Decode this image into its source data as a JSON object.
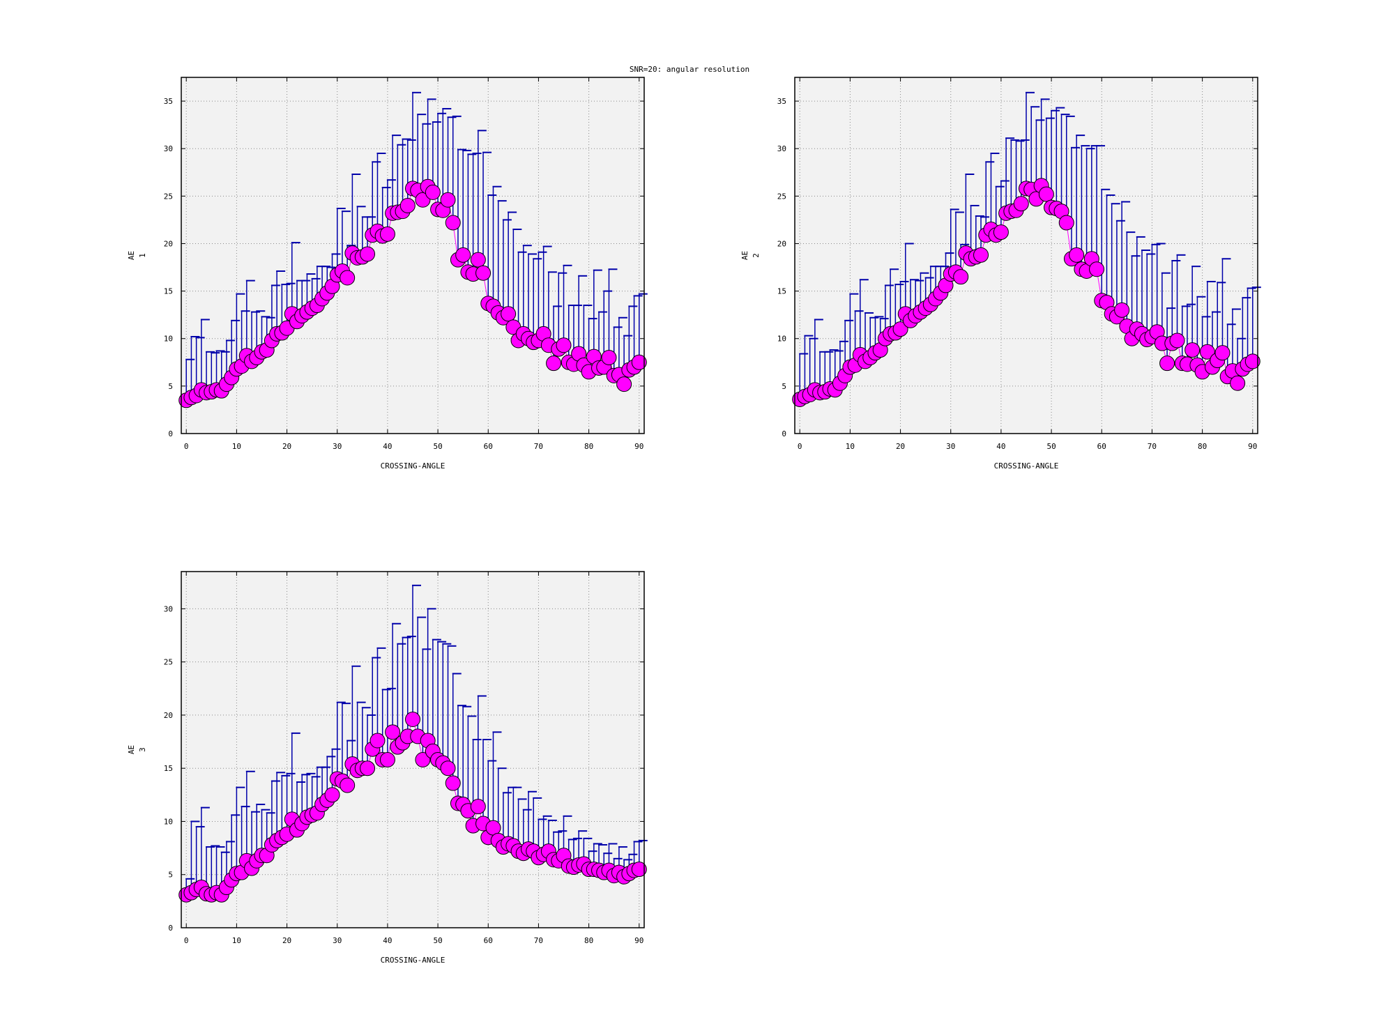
{
  "figure": {
    "title": "SNR=20: angular resolution"
  },
  "colors": {
    "plot_bg": "#f2f2f2",
    "marker": "#ff00ff",
    "marker_edge": "#000000",
    "error_bar": "#0000aa",
    "line": "#ff00ff",
    "grid": "#888888"
  },
  "chart_data": [
    {
      "type": "scatter",
      "title": "",
      "xlabel": "CROSSING-ANGLE",
      "ylabel": [
        "AE",
        "1"
      ],
      "xlim": [
        -1,
        91
      ],
      "ylim": [
        0,
        37.5
      ],
      "xticks": [
        0,
        10,
        20,
        30,
        40,
        50,
        60,
        70,
        80,
        90
      ],
      "yticks": [
        0,
        5,
        10,
        15,
        20,
        25,
        30,
        35
      ],
      "grid": true,
      "errorbars": "upper",
      "x": [
        0,
        1,
        2,
        3,
        4,
        5,
        6,
        7,
        8,
        9,
        10,
        11,
        12,
        13,
        14,
        15,
        16,
        17,
        18,
        19,
        20,
        21,
        22,
        23,
        24,
        25,
        26,
        27,
        28,
        29,
        30,
        31,
        32,
        33,
        34,
        35,
        36,
        37,
        38,
        39,
        40,
        41,
        42,
        43,
        44,
        45,
        46,
        47,
        48,
        49,
        50,
        51,
        52,
        53,
        54,
        55,
        56,
        57,
        58,
        59,
        60,
        61,
        62,
        63,
        64,
        65,
        66,
        67,
        68,
        69,
        70,
        71,
        72,
        73,
        74,
        75,
        76,
        77,
        78,
        79,
        80,
        81,
        82,
        83,
        84,
        85,
        86,
        87,
        88,
        89,
        90
      ],
      "y": [
        3.5,
        3.8,
        4.0,
        4.6,
        4.3,
        4.4,
        4.6,
        4.5,
        5.2,
        5.9,
        6.8,
        7.1,
        8.2,
        7.6,
        8.0,
        8.6,
        8.8,
        9.8,
        10.5,
        10.6,
        11.1,
        12.6,
        11.8,
        12.4,
        12.8,
        13.2,
        13.5,
        14.2,
        14.8,
        15.5,
        16.7,
        17.1,
        16.4,
        19.0,
        18.5,
        18.6,
        18.9,
        20.9,
        21.3,
        20.8,
        21.0,
        23.2,
        23.3,
        23.4,
        24.0,
        25.8,
        25.6,
        24.6,
        26.0,
        25.4,
        23.6,
        23.5,
        24.6,
        22.2,
        18.3,
        18.8,
        17.0,
        16.8,
        18.3,
        16.9,
        13.7,
        13.4,
        12.7,
        12.2,
        12.6,
        11.2,
        9.8,
        10.5,
        10.0,
        9.6,
        9.8,
        10.5,
        9.3,
        7.4,
        8.9,
        9.3,
        7.5,
        7.3,
        8.4,
        7.2,
        6.5,
        8.1,
        6.9,
        7.0,
        8.0,
        6.1,
        6.2,
        5.2,
        6.7,
        7.0,
        7.5
      ],
      "yerr_top": [
        7.8,
        10.2,
        10.1,
        12.0,
        8.6,
        8.5,
        8.7,
        8.6,
        9.8,
        11.9,
        14.7,
        12.9,
        16.1,
        12.8,
        12.9,
        12.3,
        12.2,
        15.6,
        17.1,
        15.7,
        15.8,
        20.1,
        16.1,
        16.1,
        16.8,
        16.3,
        17.6,
        17.6,
        17.5,
        18.9,
        23.7,
        23.4,
        19.8,
        27.3,
        23.9,
        22.8,
        22.8,
        28.6,
        29.5,
        25.9,
        26.7,
        31.4,
        30.4,
        31.0,
        30.9,
        35.9,
        33.6,
        32.6,
        35.2,
        32.8,
        33.7,
        34.2,
        33.3,
        33.4,
        29.9,
        29.8,
        29.4,
        29.5,
        31.9,
        29.6,
        25.1,
        26.0,
        24.5,
        22.5,
        23.3,
        21.5,
        19.1,
        19.8,
        18.9,
        18.4,
        19.1,
        19.7,
        17.0,
        13.4,
        16.9,
        17.7,
        13.5,
        13.5,
        16.6,
        13.5,
        12.1,
        17.2,
        12.8,
        15.0,
        17.3,
        11.2,
        12.2,
        10.3,
        13.4,
        14.5,
        14.7
      ]
    },
    {
      "type": "scatter",
      "title": "",
      "xlabel": "CROSSING-ANGLE",
      "ylabel": [
        "AE",
        "2"
      ],
      "xlim": [
        -1,
        91
      ],
      "ylim": [
        0,
        37.5
      ],
      "xticks": [
        0,
        10,
        20,
        30,
        40,
        50,
        60,
        70,
        80,
        90
      ],
      "yticks": [
        0,
        5,
        10,
        15,
        20,
        25,
        30,
        35
      ],
      "grid": true,
      "errorbars": "upper",
      "x": [
        0,
        1,
        2,
        3,
        4,
        5,
        6,
        7,
        8,
        9,
        10,
        11,
        12,
        13,
        14,
        15,
        16,
        17,
        18,
        19,
        20,
        21,
        22,
        23,
        24,
        25,
        26,
        27,
        28,
        29,
        30,
        31,
        32,
        33,
        34,
        35,
        36,
        37,
        38,
        39,
        40,
        41,
        42,
        43,
        44,
        45,
        46,
        47,
        48,
        49,
        50,
        51,
        52,
        53,
        54,
        55,
        56,
        57,
        58,
        59,
        60,
        61,
        62,
        63,
        64,
        65,
        66,
        67,
        68,
        69,
        70,
        71,
        72,
        73,
        74,
        75,
        76,
        77,
        78,
        79,
        80,
        81,
        82,
        83,
        84,
        85,
        86,
        87,
        88,
        89,
        90
      ],
      "y": [
        3.6,
        3.9,
        4.1,
        4.6,
        4.3,
        4.4,
        4.7,
        4.6,
        5.3,
        6.1,
        7.0,
        7.2,
        8.3,
        7.6,
        8.0,
        8.5,
        8.8,
        10.0,
        10.5,
        10.6,
        11.0,
        12.6,
        11.9,
        12.4,
        12.8,
        13.2,
        13.6,
        14.2,
        14.8,
        15.6,
        16.8,
        17.0,
        16.5,
        19.0,
        18.4,
        18.6,
        18.8,
        20.9,
        21.5,
        20.9,
        21.2,
        23.2,
        23.4,
        23.5,
        24.2,
        25.8,
        25.7,
        24.7,
        26.1,
        25.2,
        23.8,
        23.7,
        23.4,
        22.2,
        18.4,
        18.8,
        17.3,
        17.1,
        18.4,
        17.3,
        14.0,
        13.8,
        12.6,
        12.3,
        13.0,
        11.3,
        10.0,
        11.0,
        10.5,
        9.9,
        10.2,
        10.7,
        9.5,
        7.4,
        9.5,
        9.8,
        7.4,
        7.3,
        8.8,
        7.2,
        6.5,
        8.6,
        7.0,
        7.7,
        8.5,
        6.0,
        6.6,
        5.3,
        6.8,
        7.3,
        7.6
      ],
      "yerr_top": [
        8.4,
        10.3,
        10.0,
        12.0,
        8.6,
        8.6,
        8.8,
        8.7,
        9.7,
        11.9,
        14.7,
        12.9,
        16.2,
        12.7,
        12.2,
        12.3,
        12.1,
        15.6,
        17.3,
        15.7,
        16.0,
        20.0,
        16.2,
        16.1,
        16.9,
        16.4,
        17.6,
        17.6,
        17.6,
        19.0,
        23.6,
        23.3,
        19.9,
        27.3,
        24.0,
        22.9,
        22.8,
        28.6,
        29.5,
        26.0,
        26.6,
        31.1,
        30.9,
        30.8,
        30.9,
        35.9,
        34.4,
        33.0,
        35.2,
        33.2,
        34.0,
        34.3,
        33.6,
        33.4,
        30.1,
        31.4,
        30.3,
        30.0,
        30.3,
        30.3,
        25.7,
        25.1,
        24.2,
        22.4,
        24.4,
        21.2,
        18.7,
        20.7,
        19.3,
        18.9,
        19.9,
        20.0,
        16.9,
        13.2,
        18.2,
        18.8,
        13.4,
        13.6,
        17.6,
        14.4,
        12.3,
        16.0,
        12.8,
        15.9,
        18.4,
        11.5,
        13.1,
        10.0,
        14.3,
        15.3,
        15.4
      ]
    },
    {
      "type": "scatter",
      "title": "",
      "xlabel": "CROSSING-ANGLE",
      "ylabel": [
        "AE",
        "3"
      ],
      "xlim": [
        -1,
        91
      ],
      "ylim": [
        0,
        33.5
      ],
      "xticks": [
        0,
        10,
        20,
        30,
        40,
        50,
        60,
        70,
        80,
        90
      ],
      "yticks": [
        0,
        5,
        10,
        15,
        20,
        25,
        30
      ],
      "grid": true,
      "errorbars": "upper",
      "x": [
        0,
        1,
        2,
        3,
        4,
        5,
        6,
        7,
        8,
        9,
        10,
        11,
        12,
        13,
        14,
        15,
        16,
        17,
        18,
        19,
        20,
        21,
        22,
        23,
        24,
        25,
        26,
        27,
        28,
        29,
        30,
        31,
        32,
        33,
        34,
        35,
        36,
        37,
        38,
        39,
        40,
        41,
        42,
        43,
        44,
        45,
        46,
        47,
        48,
        49,
        50,
        51,
        52,
        53,
        54,
        55,
        56,
        57,
        58,
        59,
        60,
        61,
        62,
        63,
        64,
        65,
        66,
        67,
        68,
        69,
        70,
        71,
        72,
        73,
        74,
        75,
        76,
        77,
        78,
        79,
        80,
        81,
        82,
        83,
        84,
        85,
        86,
        87,
        88,
        89,
        90
      ],
      "y": [
        3.1,
        3.3,
        3.6,
        3.8,
        3.2,
        3.1,
        3.3,
        3.1,
        3.8,
        4.5,
        5.1,
        5.2,
        6.3,
        5.6,
        6.3,
        6.8,
        6.8,
        7.8,
        8.2,
        8.5,
        8.8,
        10.2,
        9.2,
        9.8,
        10.4,
        10.6,
        10.8,
        11.6,
        12.0,
        12.5,
        14.0,
        13.8,
        13.4,
        15.4,
        14.8,
        15.0,
        15.0,
        16.8,
        17.6,
        15.8,
        15.8,
        18.4,
        17.0,
        17.4,
        18.0,
        19.6,
        18.0,
        15.8,
        17.6,
        16.6,
        15.8,
        15.5,
        15.0,
        13.6,
        11.7,
        11.6,
        11.0,
        9.6,
        11.4,
        9.8,
        8.5,
        9.4,
        8.2,
        7.6,
        7.9,
        7.7,
        7.2,
        7.0,
        7.4,
        7.2,
        6.6,
        6.9,
        7.2,
        6.4,
        6.3,
        6.8,
        5.8,
        5.7,
        5.9,
        6.0,
        5.5,
        5.5,
        5.4,
        5.2,
        5.4,
        4.9,
        5.2,
        4.8,
        5.1,
        5.4,
        5.5
      ],
      "yerr_top": [
        4.6,
        10.0,
        9.5,
        11.3,
        7.6,
        7.7,
        7.6,
        7.1,
        8.1,
        10.6,
        13.2,
        11.4,
        14.7,
        10.9,
        11.6,
        11.1,
        10.8,
        13.8,
        14.6,
        14.3,
        14.5,
        18.3,
        13.7,
        14.4,
        14.5,
        14.2,
        15.1,
        15.1,
        16.1,
        16.8,
        21.2,
        21.1,
        17.6,
        24.6,
        21.2,
        20.7,
        20.0,
        25.4,
        26.3,
        22.4,
        22.5,
        28.6,
        26.7,
        27.3,
        27.4,
        32.2,
        29.2,
        26.2,
        30.0,
        27.1,
        26.9,
        26.7,
        26.5,
        23.9,
        20.9,
        20.8,
        19.9,
        17.7,
        21.8,
        17.7,
        15.7,
        18.4,
        15.0,
        12.7,
        13.2,
        13.2,
        12.1,
        11.1,
        12.8,
        12.2,
        10.2,
        10.5,
        10.1,
        9.0,
        9.1,
        10.5,
        8.3,
        8.4,
        9.1,
        8.4,
        7.2,
        7.9,
        7.8,
        7.0,
        7.9,
        6.5,
        7.6,
        6.4,
        6.9,
        8.1,
        8.2
      ]
    }
  ]
}
